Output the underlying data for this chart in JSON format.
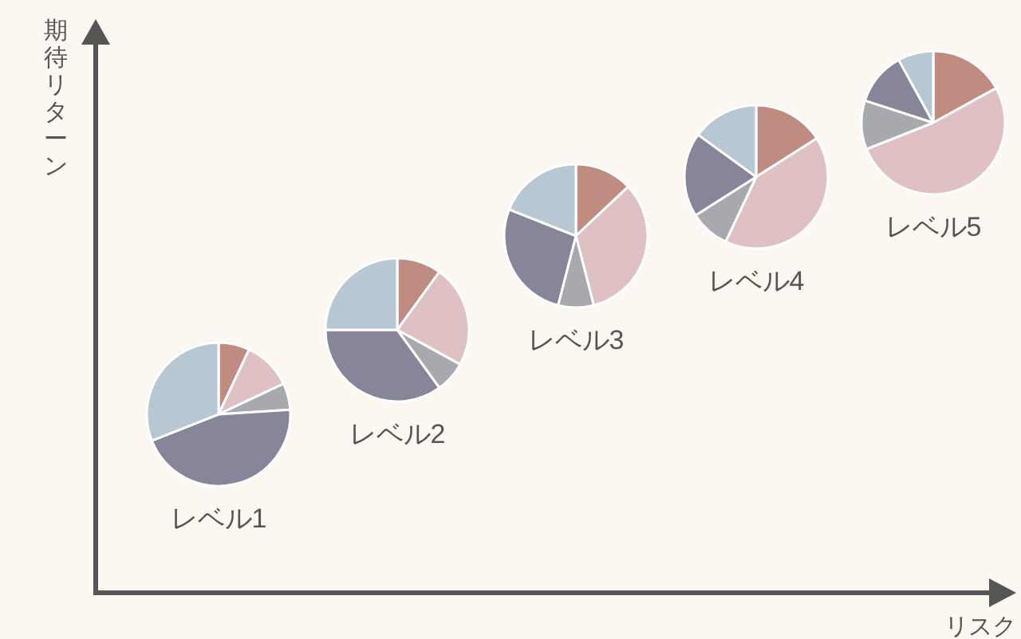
{
  "chart_data": [
    {
      "type": "other",
      "xlabel": "リスク",
      "ylabel": "期待リターン"
    },
    {
      "type": "pie",
      "title": "レベル1",
      "categories": [
        null,
        null,
        null,
        null,
        null
      ],
      "values": [
        7,
        11,
        6,
        45,
        31
      ],
      "colors": [
        "#c08b80",
        "#dfc1c3",
        "#a8a9ae",
        "#878599",
        "#b8c7d4"
      ]
    },
    {
      "type": "pie",
      "title": "レベル2",
      "categories": [
        null,
        null,
        null,
        null,
        null
      ],
      "values": [
        10,
        23,
        7,
        35,
        25
      ],
      "colors": [
        "#c08b80",
        "#dfc1c3",
        "#a8a9ae",
        "#878599",
        "#b8c7d4"
      ]
    },
    {
      "type": "pie",
      "title": "レベル3",
      "categories": [
        null,
        null,
        null,
        null,
        null
      ],
      "values": [
        13,
        33,
        8,
        27,
        19
      ],
      "colors": [
        "#c08b80",
        "#dfc1c3",
        "#a8a9ae",
        "#878599",
        "#b8c7d4"
      ]
    },
    {
      "type": "pie",
      "title": "レベル4",
      "categories": [
        null,
        null,
        null,
        null,
        null
      ],
      "values": [
        16,
        41,
        9,
        19,
        15
      ],
      "colors": [
        "#c08b80",
        "#dfc1c3",
        "#a8a9ae",
        "#878599",
        "#b8c7d4"
      ]
    },
    {
      "type": "pie",
      "title": "レベル5",
      "categories": [
        null,
        null,
        null,
        null,
        null
      ],
      "values": [
        17,
        52,
        11,
        12,
        8
      ],
      "colors": [
        "#c08b80",
        "#dfc1c3",
        "#a8a9ae",
        "#878599",
        "#b8c7d4"
      ]
    }
  ]
}
